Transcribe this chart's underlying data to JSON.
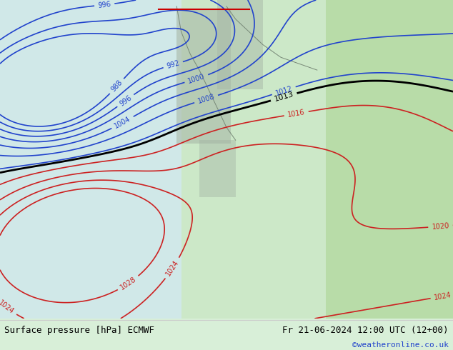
{
  "title_left": "Surface pressure [hPa] ECMWF",
  "title_right": "Fr 21-06-2024 12:00 UTC (12+00)",
  "copyright": "©weatheronline.co.uk",
  "bg_color": "#d8efd8",
  "text_color_black": "#000000",
  "text_color_blue": "#0000cc",
  "text_color_red": "#cc0000",
  "bottom_bg": "#e8e8e8",
  "figsize": [
    6.34,
    4.9
  ],
  "dpi": 100
}
